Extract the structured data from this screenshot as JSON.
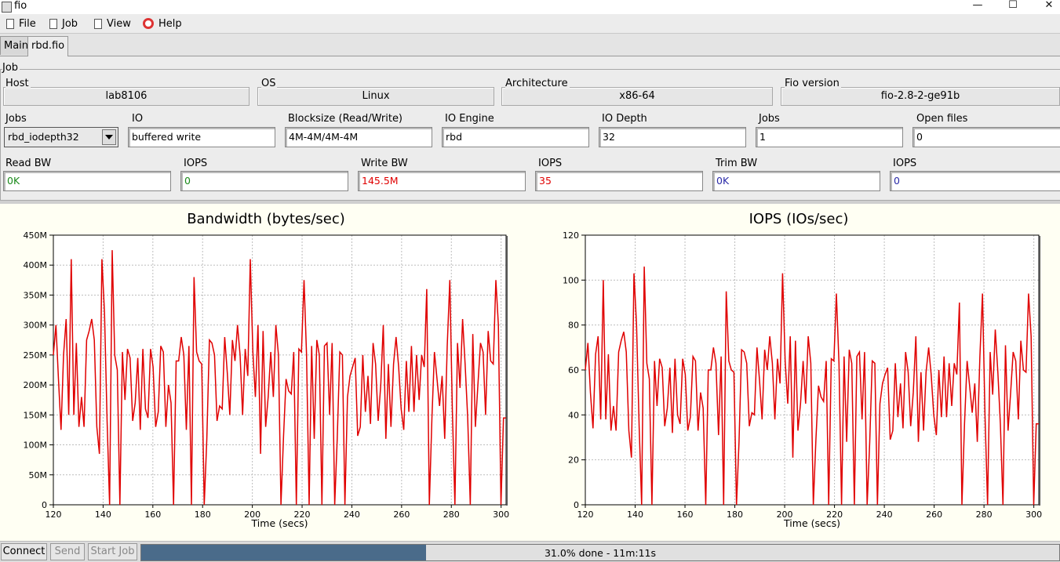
{
  "window": {
    "title": "fio",
    "min": "—",
    "max": "☐",
    "close": "✕"
  },
  "menu": [
    {
      "label": "File",
      "icon": "document-icon"
    },
    {
      "label": "Job",
      "icon": "document-icon"
    },
    {
      "label": "View",
      "icon": "document-icon"
    },
    {
      "label": "Help",
      "icon": "lifebuoy-icon"
    }
  ],
  "tabs": [
    {
      "label": "Main"
    },
    {
      "label": "rbd.fio"
    }
  ],
  "job": {
    "group_label": "Job",
    "host": {
      "label": "Host",
      "value": "lab8106"
    },
    "os": {
      "label": "OS",
      "value": "Linux"
    },
    "arch": {
      "label": "Architecture",
      "value": "x86-64"
    },
    "fio_version": {
      "label": "Fio version",
      "value": "fio-2.8-2-ge91b"
    },
    "jobs_combo": {
      "label": "Jobs",
      "value": "rbd_iodepth32"
    },
    "io": {
      "label": "IO",
      "value": "buffered write"
    },
    "blocksize": {
      "label": "Blocksize (Read/Write)",
      "value": "4M-4M/4M-4M"
    },
    "io_engine": {
      "label": "IO Engine",
      "value": "rbd"
    },
    "io_depth": {
      "label": "IO Depth",
      "value": "32"
    },
    "jobs": {
      "label": "Jobs",
      "value": "1"
    },
    "open_files": {
      "label": "Open files",
      "value": "0"
    },
    "read_bw": {
      "label": "Read BW",
      "value": "0K"
    },
    "read_iops": {
      "label": "IOPS",
      "value": "0"
    },
    "write_bw": {
      "label": "Write BW",
      "value": "145.5M"
    },
    "write_iops": {
      "label": "IOPS",
      "value": "35"
    },
    "trim_bw": {
      "label": "Trim BW",
      "value": "0K"
    },
    "trim_iops": {
      "label": "IOPS",
      "value": "0"
    }
  },
  "colors": {
    "read": "#1a8a1a",
    "write": "#e00000",
    "trim": "#2a2aa8",
    "series": "#e00000",
    "progress": "#4a6b8a"
  },
  "chart_data": [
    {
      "type": "line",
      "title": "Bandwidth (bytes/sec)",
      "xlabel": "Time (secs)",
      "xlim": [
        120,
        302
      ],
      "ylim": [
        0,
        450000000
      ],
      "xticks": [
        120,
        140,
        160,
        180,
        200,
        220,
        240,
        260,
        280,
        300
      ],
      "yticks": [
        0,
        50000000,
        100000000,
        150000000,
        200000000,
        250000000,
        300000000,
        350000000,
        400000000,
        450000000
      ],
      "ytick_labels": [
        "0",
        "50M",
        "100M",
        "150M",
        "200M",
        "250M",
        "300M",
        "350M",
        "400M",
        "450M"
      ],
      "grid": true,
      "series": [
        {
          "values": [
            250,
            300,
            210,
            125,
            250,
            310,
            150,
            410,
            150,
            270,
            130,
            180,
            130,
            275,
            290,
            310,
            275,
            130,
            85,
            410,
            320,
            140,
            0,
            425,
            250,
            225,
            0,
            255,
            175,
            260,
            245,
            140,
            170,
            245,
            125,
            260,
            160,
            145,
            260,
            230,
            130,
            155,
            265,
            255,
            130,
            200,
            170,
            0,
            240,
            240,
            280,
            250,
            125,
            265,
            0,
            380,
            255,
            240,
            235,
            0,
            110,
            275,
            270,
            250,
            140,
            165,
            160,
            280,
            220,
            150,
            275,
            240,
            300,
            250,
            150,
            260,
            215,
            410,
            255,
            180,
            300,
            85,
            290,
            130,
            180,
            255,
            180,
            300,
            250,
            0,
            115,
            210,
            190,
            185,
            255,
            0,
            260,
            255,
            375,
            250,
            0,
            265,
            110,
            275,
            250,
            0,
            265,
            270,
            150,
            270,
            0,
            110,
            255,
            250,
            0,
            180,
            215,
            230,
            245,
            115,
            130,
            250,
            155,
            215,
            135,
            270,
            235,
            140,
            200,
            300,
            110,
            235,
            130,
            235,
            280,
            230,
            160,
            125,
            240,
            155,
            265,
            155,
            250,
            175,
            250,
            230,
            360,
            0,
            145,
            255,
            210,
            165,
            215,
            110,
            265,
            375,
            160,
            0,
            270,
            195,
            310,
            235,
            145,
            0,
            285,
            130,
            200,
            270,
            255,
            150,
            290,
            240,
            235,
            375,
            300,
            0,
            145,
            145
          ]
        }
      ]
    },
    {
      "type": "line",
      "title": "IOPS (IOs/sec)",
      "xlabel": "Time (secs)",
      "xlim": [
        120,
        302
      ],
      "ylim": [
        0,
        120
      ],
      "xticks": [
        120,
        140,
        160,
        180,
        200,
        220,
        240,
        260,
        280,
        300
      ],
      "yticks": [
        0,
        20,
        40,
        60,
        80,
        100,
        120
      ],
      "ytick_labels": [
        "0",
        "20",
        "40",
        "60",
        "80",
        "100",
        "120"
      ],
      "grid": true,
      "series": [
        {
          "values": [
            60,
            72,
            50,
            34,
            67,
            75,
            38,
            100,
            38,
            67,
            33,
            44,
            33,
            68,
            73,
            77,
            68,
            33,
            21,
            103,
            80,
            35,
            0,
            106,
            63,
            56,
            0,
            64,
            44,
            65,
            61,
            35,
            43,
            61,
            32,
            65,
            40,
            36,
            65,
            58,
            33,
            39,
            66,
            64,
            33,
            50,
            43,
            0,
            60,
            60,
            70,
            63,
            31,
            66,
            0,
            95,
            64,
            60,
            59,
            0,
            28,
            69,
            68,
            63,
            35,
            41,
            40,
            70,
            55,
            38,
            69,
            60,
            75,
            63,
            38,
            65,
            54,
            103,
            64,
            45,
            75,
            21,
            73,
            33,
            45,
            64,
            45,
            75,
            63,
            0,
            29,
            53,
            48,
            46,
            64,
            0,
            65,
            64,
            94,
            63,
            0,
            66,
            28,
            69,
            63,
            0,
            66,
            68,
            38,
            68,
            0,
            28,
            64,
            63,
            0,
            45,
            54,
            58,
            61,
            29,
            33,
            63,
            39,
            54,
            34,
            68,
            59,
            35,
            50,
            75,
            28,
            59,
            33,
            59,
            70,
            58,
            40,
            31,
            60,
            39,
            66,
            39,
            63,
            44,
            63,
            58,
            90,
            0,
            36,
            64,
            53,
            41,
            54,
            28,
            66,
            94,
            40,
            0,
            68,
            49,
            78,
            59,
            36,
            0,
            71,
            33,
            50,
            68,
            64,
            38,
            73,
            60,
            59,
            94,
            75,
            0,
            36,
            36
          ]
        }
      ]
    }
  ],
  "status": {
    "connect": "Connect",
    "send": "Send",
    "start_job": "Start Job",
    "progress_fraction": 0.31,
    "progress_text": "31.0% done - 11m:11s"
  }
}
